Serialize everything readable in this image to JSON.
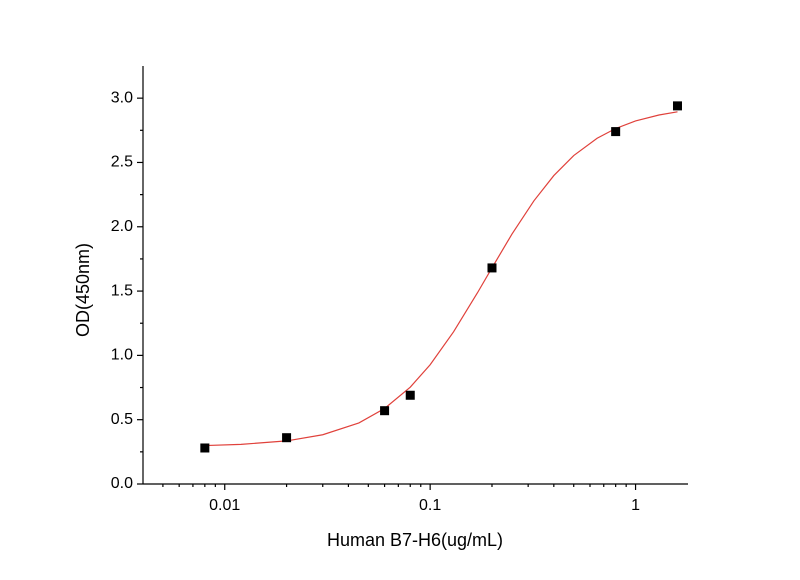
{
  "chart_data": {
    "type": "scatter",
    "xlabel": "Human B7-H6(ug/mL)",
    "ylabel": "OD(450nm)",
    "xscale": "log",
    "xlim": [
      0.004,
      1.8
    ],
    "ylim": [
      0,
      3.25
    ],
    "xticks": [
      0.01,
      0.1,
      1
    ],
    "xminorticks": [
      0.005,
      0.006,
      0.007,
      0.008,
      0.009,
      0.02,
      0.03,
      0.04,
      0.05,
      0.06,
      0.07,
      0.08,
      0.09,
      0.2,
      0.3,
      0.4,
      0.5,
      0.6,
      0.7,
      0.8,
      0.9
    ],
    "yticks": [
      {
        "value": 0,
        "label": "0.0"
      },
      {
        "value": 0.5,
        "label": "0.5"
      },
      {
        "value": 1,
        "label": "1.0"
      },
      {
        "value": 1.5,
        "label": "1.5"
      },
      {
        "value": 2,
        "label": "2.0"
      },
      {
        "value": 2.5,
        "label": "2.5"
      },
      {
        "value": 3,
        "label": "3.0"
      }
    ],
    "yminorticks": [
      0.25,
      0.75,
      1.25,
      1.75,
      2.25,
      2.75
    ],
    "series": [
      {
        "type": "scatter",
        "marker": "square",
        "color": "#000000",
        "x": [
          0.008,
          0.02,
          0.06,
          0.08,
          0.2,
          0.8,
          1.6
        ],
        "values": [
          0.28,
          0.36,
          0.57,
          0.69,
          1.68,
          2.74,
          2.94
        ]
      },
      {
        "type": "line",
        "color": "#e0413b",
        "x": [
          0.008,
          0.012,
          0.02,
          0.03,
          0.045,
          0.06,
          0.08,
          0.1,
          0.13,
          0.17,
          0.2,
          0.25,
          0.32,
          0.4,
          0.5,
          0.65,
          0.8,
          1.0,
          1.3,
          1.6
        ],
        "values": [
          0.299,
          0.308,
          0.335,
          0.383,
          0.475,
          0.587,
          0.753,
          0.927,
          1.183,
          1.487,
          1.681,
          1.942,
          2.202,
          2.398,
          2.554,
          2.688,
          2.764,
          2.823,
          2.869,
          2.894
        ]
      }
    ]
  }
}
